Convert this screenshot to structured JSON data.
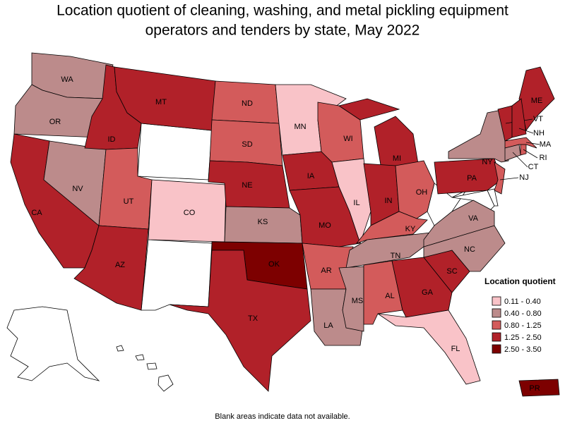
{
  "title": "Location quotient of cleaning, washing, and metal pickling equipment operators and tenders by state, May 2022",
  "note": "Blank areas indicate data not available.",
  "legend": {
    "title": "Location quotient",
    "classes": [
      {
        "label": "0.11 - 0.40",
        "color": "#f9c3c8"
      },
      {
        "label": "0.40 - 0.80",
        "color": "#bc8b8b"
      },
      {
        "label": "0.80 - 1.25",
        "color": "#d35b5b"
      },
      {
        "label": "1.25 - 2.50",
        "color": "#b12129"
      },
      {
        "label": "2.50 - 3.50",
        "color": "#7d0000"
      }
    ]
  },
  "states": [
    {
      "label": "WA",
      "class": 1
    },
    {
      "label": "OR",
      "class": 1
    },
    {
      "label": "CA",
      "class": 3
    },
    {
      "label": "NV",
      "class": 1
    },
    {
      "label": "ID",
      "class": 3
    },
    {
      "label": "MT",
      "class": 3
    },
    {
      "label": "UT",
      "class": 2
    },
    {
      "label": "CO",
      "class": 0
    },
    {
      "label": "AZ",
      "class": 3
    },
    {
      "label": "ND",
      "class": 2
    },
    {
      "label": "SD",
      "class": 2
    },
    {
      "label": "NE",
      "class": 3
    },
    {
      "label": "KS",
      "class": 1
    },
    {
      "label": "OK",
      "class": 4
    },
    {
      "label": "TX",
      "class": 3
    },
    {
      "label": "MN",
      "class": 0
    },
    {
      "label": "IA",
      "class": 3
    },
    {
      "label": "MO",
      "class": 3
    },
    {
      "label": "AR",
      "class": 2
    },
    {
      "label": "LA",
      "class": 1
    },
    {
      "label": "WI",
      "class": 2
    },
    {
      "label": "IL",
      "class": 0
    },
    {
      "label": "MI",
      "class": 3
    },
    {
      "label": "IN",
      "class": 3
    },
    {
      "label": "OH",
      "class": 2
    },
    {
      "label": "KY",
      "class": 2
    },
    {
      "label": "TN",
      "class": 1
    },
    {
      "label": "MS",
      "class": 1
    },
    {
      "label": "AL",
      "class": 2
    },
    {
      "label": "GA",
      "class": 3
    },
    {
      "label": "FL",
      "class": 0
    },
    {
      "label": "SC",
      "class": 3
    },
    {
      "label": "NC",
      "class": 1
    },
    {
      "label": "VA",
      "class": 1
    },
    {
      "label": "PA",
      "class": 3
    },
    {
      "label": "NY",
      "class": 1
    },
    {
      "label": "ME",
      "class": 3
    },
    {
      "label": "VT",
      "class": 3
    },
    {
      "label": "NH",
      "class": 3
    },
    {
      "label": "MA",
      "class": 2
    },
    {
      "label": "RI",
      "class": 2
    },
    {
      "label": "CT",
      "class": 1
    },
    {
      "label": "NJ",
      "class": 2
    },
    {
      "label": "PR",
      "class": 4
    }
  ]
}
